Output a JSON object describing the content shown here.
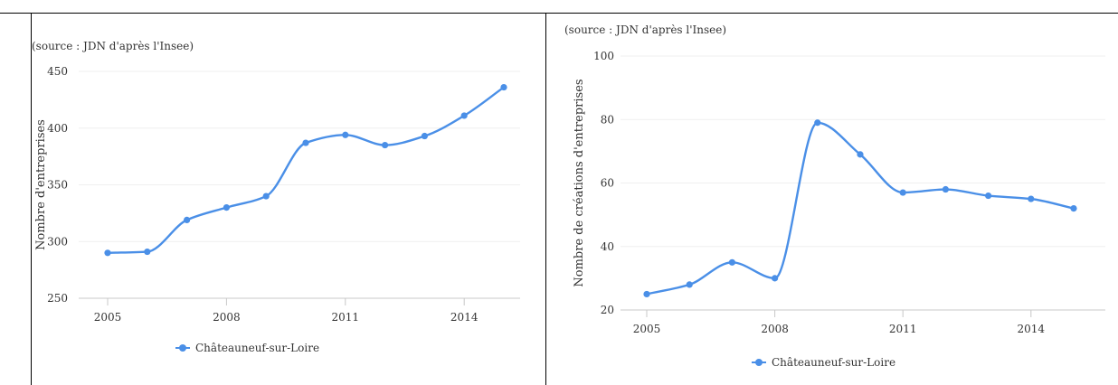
{
  "chart_data": [
    {
      "type": "line",
      "source": "(source : JDN d'après l'Insee)",
      "ylabel": "Nombre d'entreprises",
      "xlabel": "",
      "x": [
        2005,
        2006,
        2007,
        2008,
        2009,
        2010,
        2011,
        2012,
        2013,
        2014,
        2015
      ],
      "xticks": [
        "2005",
        "2008",
        "2011",
        "2014"
      ],
      "yticks": [
        "250",
        "300",
        "350",
        "400",
        "450"
      ],
      "ylim": [
        250,
        450
      ],
      "series": [
        {
          "name": "Châteauneuf-sur-Loire",
          "values": [
            290,
            291,
            319,
            330,
            340,
            387,
            394,
            385,
            393,
            411,
            436
          ]
        }
      ],
      "grid": true,
      "legend": "bottom-center",
      "color": "#4a8fe7"
    },
    {
      "type": "line",
      "source": "(source : JDN d'après l'Insee)",
      "ylabel": "Nombre de créations d'entreprises",
      "xlabel": "",
      "x": [
        2005,
        2006,
        2007,
        2008,
        2009,
        2010,
        2011,
        2012,
        2013,
        2014,
        2015
      ],
      "xticks": [
        "2005",
        "2008",
        "2011",
        "2014"
      ],
      "yticks": [
        "20",
        "40",
        "60",
        "80",
        "100"
      ],
      "ylim": [
        20,
        100
      ],
      "series": [
        {
          "name": "Châteauneuf-sur-Loire",
          "values": [
            25,
            28,
            35,
            30,
            79,
            69,
            57,
            58,
            56,
            55,
            52
          ]
        }
      ],
      "grid": true,
      "legend": "bottom-center",
      "color": "#4a8fe7"
    }
  ]
}
